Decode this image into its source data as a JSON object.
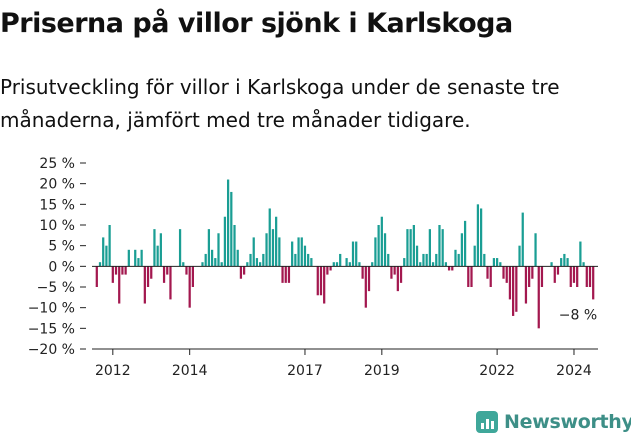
{
  "title": "Priserna på villor sjönk i Karlskoga",
  "subtitle": "Prisutveckling för villor i Karlskoga under de senaste tre månaderna, jämfört med tre månader tidigare.",
  "brand": "Newsworthy",
  "colors": {
    "positive": "#1a9e94",
    "negative": "#a3184f",
    "axis": "#222222",
    "grid": "#cccccc",
    "brand": "#3d8f87"
  },
  "chart_data": {
    "type": "bar",
    "title": "Priserna på villor sjönk i Karlskoga",
    "xlabel": "",
    "ylabel": "",
    "ylim": [
      -20,
      25
    ],
    "yticks": [
      25,
      20,
      15,
      10,
      5,
      0,
      -5,
      -10,
      -15,
      -20
    ],
    "ytick_labels": [
      "25 %",
      "20 %",
      "15 %",
      "10 %",
      "5 %",
      "0 %",
      "−5 %",
      "−10 %",
      "−15 %",
      "−20 %"
    ],
    "x_start": "2011-08",
    "x_frequency": "monthly",
    "xtick_labels": [
      "2012",
      "2014",
      "2017",
      "2019",
      "2022",
      "2024"
    ],
    "annotation": "−8 %",
    "values": [
      -5,
      1,
      7,
      5,
      10,
      -4,
      -2,
      -9,
      -2,
      -2,
      4,
      0,
      4,
      2,
      4,
      -9,
      -5,
      -3,
      9,
      5,
      8,
      -4,
      -2,
      -8,
      0,
      0,
      9,
      1,
      -2,
      -10,
      -5,
      0,
      0,
      1,
      3,
      9,
      4,
      2,
      8,
      1,
      12,
      21,
      18,
      10,
      4,
      -3,
      -2,
      1,
      3,
      7,
      2,
      1,
      3,
      8,
      14,
      9,
      12,
      7,
      -4,
      -4,
      -4,
      6,
      3,
      7,
      7,
      5,
      3,
      2,
      0,
      -7,
      -7,
      -9,
      -2,
      -1,
      1,
      1,
      3,
      0,
      2,
      1,
      6,
      6,
      1,
      -3,
      -10,
      -6,
      1,
      7,
      10,
      12,
      8,
      3,
      -3,
      -2,
      -6,
      -4,
      2,
      9,
      9,
      10,
      5,
      1,
      3,
      3,
      9,
      1,
      3,
      10,
      9,
      1,
      -1,
      -1,
      4,
      3,
      8,
      11,
      -5,
      -5,
      5,
      15,
      14,
      3,
      -3,
      -5,
      2,
      2,
      1,
      -3,
      -4,
      -8,
      -12,
      -11,
      5,
      13,
      -9,
      -5,
      -3,
      8,
      -15,
      -5,
      0,
      0,
      1,
      -4,
      -2,
      2,
      3,
      2,
      -5,
      -4,
      -5,
      6,
      1,
      -5,
      -5,
      -8
    ]
  }
}
